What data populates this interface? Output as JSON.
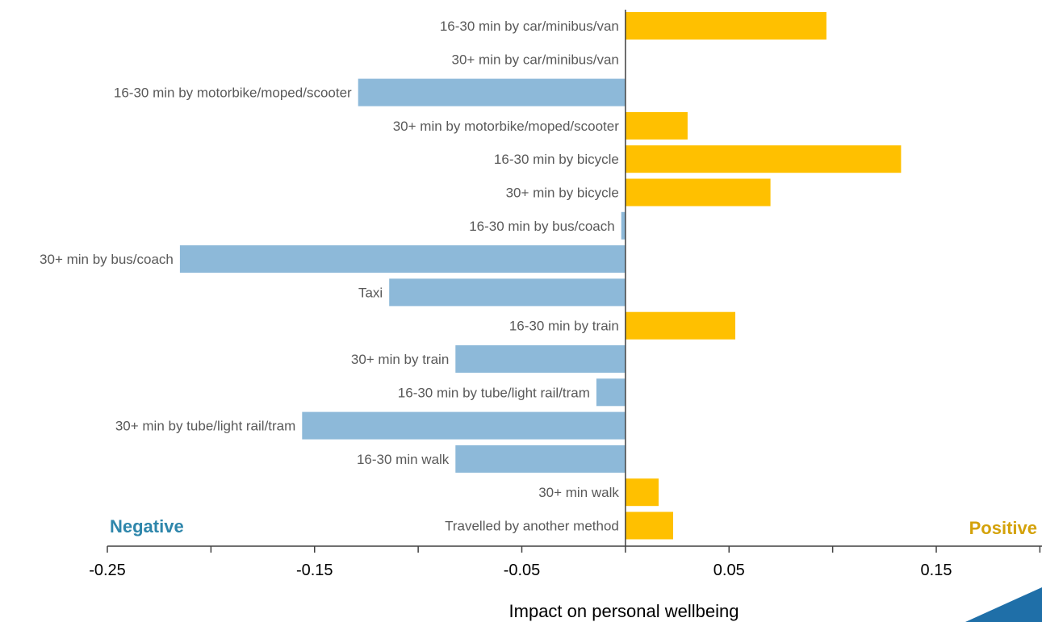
{
  "chart_data": {
    "type": "bar",
    "orientation": "horizontal",
    "categories": [
      "16-30 min by car/minibus/van",
      "30+ min by car/minibus/van",
      "16-30 min by motorbike/moped/scooter",
      "30+ min by motorbike/moped/scooter",
      "16-30 min by bicycle",
      "30+ min by bicycle",
      "16-30 min by bus/coach",
      "30+ min by bus/coach",
      "Taxi",
      "16-30 min by train",
      "30+ min by train",
      "16-30 min by tube/light rail/tram",
      "30+ min by tube/light rail/tram",
      "16-30 min walk",
      "30+ min walk",
      "Travelled by another method"
    ],
    "values": [
      0.097,
      0.0,
      -0.129,
      0.03,
      0.133,
      0.07,
      -0.002,
      -0.215,
      -0.114,
      0.053,
      -0.082,
      -0.014,
      -0.156,
      -0.082,
      0.016,
      0.023
    ],
    "xlabel": "Impact on personal wellbeing",
    "ylabel": "",
    "xlim": [
      -0.25,
      0.2
    ],
    "xticks": [
      -0.25,
      -0.15,
      -0.05,
      0.05,
      0.15
    ],
    "xtick_labels": [
      "-0.25",
      "-0.15",
      "-0.05",
      "0.05",
      "0.15"
    ],
    "negative_label": "Negative",
    "positive_label": "Positive",
    "grid": false,
    "legend": "none",
    "colors": {
      "negative_bar": "#8DB9D9",
      "positive_bar": "#FFC000",
      "negative_text": "#2E86AB",
      "positive_text": "#D4A20A",
      "corner_accent": "#1F6FA8"
    }
  }
}
